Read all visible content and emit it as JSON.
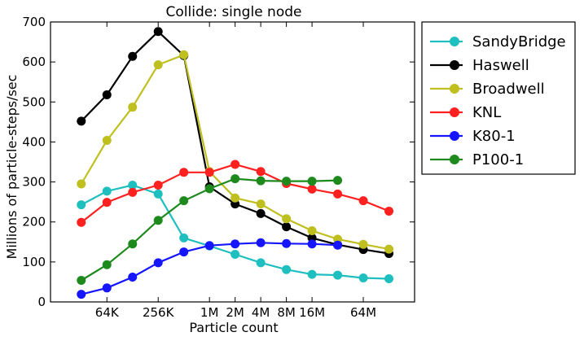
{
  "chart_data": {
    "type": "line",
    "title": "Collide: single node",
    "xlabel": "Particle count",
    "ylabel": "Millions of particle-steps/sec",
    "xscale": "log2",
    "x_ticks": [
      {
        "label": "64K",
        "exp": 16
      },
      {
        "label": "256K",
        "exp": 18
      },
      {
        "label": "1M",
        "exp": 20
      },
      {
        "label": "2M",
        "exp": 21
      },
      {
        "label": "4M",
        "exp": 22
      },
      {
        "label": "8M",
        "exp": 23
      },
      {
        "label": "16M",
        "exp": 24
      },
      {
        "label": "64M",
        "exp": 26
      }
    ],
    "xlim_exp": [
      13.8,
      28.0
    ],
    "ylim": [
      0,
      700
    ],
    "y_ticks": [
      0,
      100,
      200,
      300,
      400,
      500,
      600,
      700
    ],
    "grid": false,
    "legend_position": "outside-right",
    "series": [
      {
        "name": "SandyBridge",
        "color": "#1fbfbf",
        "x_exp": [
          15,
          16,
          17,
          18,
          19,
          20,
          21,
          22,
          23,
          24,
          25,
          26,
          27
        ],
        "values": [
          243,
          277,
          292,
          270,
          160,
          140,
          119,
          98,
          81,
          69,
          67,
          60,
          58
        ]
      },
      {
        "name": "Haswell",
        "color": "#000000",
        "x_exp": [
          15,
          16,
          17,
          18,
          19,
          20,
          21,
          22,
          23,
          24,
          25,
          26,
          27
        ],
        "values": [
          452,
          518,
          614,
          676,
          616,
          288,
          245,
          221,
          188,
          160,
          143,
          131,
          121
        ]
      },
      {
        "name": "Broadwell",
        "color": "#bfbf1f",
        "x_exp": [
          15,
          16,
          17,
          18,
          19,
          20,
          21,
          22,
          23,
          24,
          25,
          26,
          27
        ],
        "values": [
          295,
          404,
          487,
          593,
          618,
          326,
          260,
          245,
          208,
          178,
          157,
          144,
          132
        ]
      },
      {
        "name": "KNL",
        "color": "#ff2020",
        "x_exp": [
          15,
          16,
          17,
          18,
          19,
          20,
          21,
          22,
          23,
          24,
          25,
          26,
          27
        ],
        "values": [
          199,
          249,
          274,
          292,
          324,
          324,
          344,
          326,
          296,
          282,
          270,
          253,
          227
        ]
      },
      {
        "name": "K80-1",
        "color": "#1515ff",
        "x_exp": [
          15,
          16,
          17,
          18,
          19,
          20,
          21,
          22,
          23,
          24,
          25
        ],
        "values": [
          19,
          35,
          62,
          98,
          125,
          141,
          145,
          148,
          146,
          145,
          142
        ]
      },
      {
        "name": "P100-1",
        "color": "#1e8a1e",
        "x_exp": [
          15,
          16,
          17,
          18,
          19,
          20,
          21,
          22,
          23,
          24,
          25
        ],
        "values": [
          54,
          93,
          145,
          204,
          253,
          283,
          308,
          303,
          302,
          302,
          304
        ]
      }
    ]
  }
}
